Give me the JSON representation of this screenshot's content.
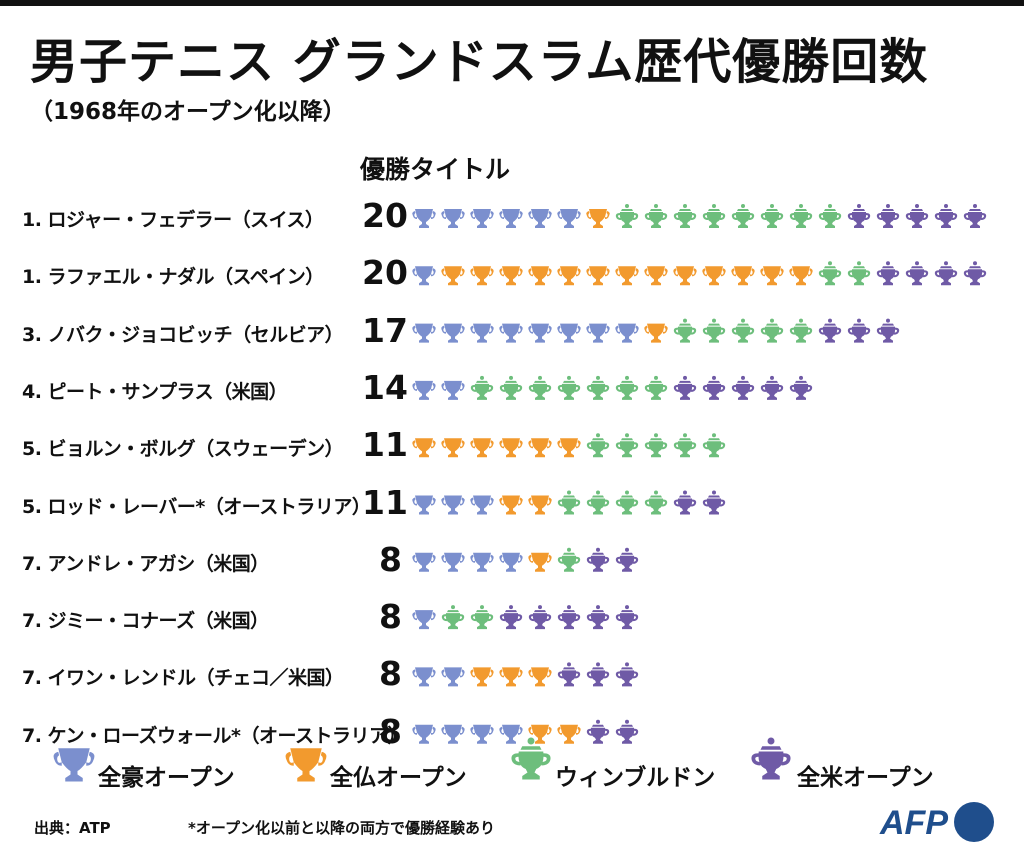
{
  "title": "男子テニス グランドスラム歴代優勝回数",
  "subtitle": "（1968年のオープン化以降）",
  "column_header": "優勝タイトル",
  "footer": {
    "source": "出典：ATP",
    "note": "*オープン化以前と以降の両方で優勝経験あり",
    "logo": "AFP"
  },
  "colors": {
    "australian_open": "#7b8fce",
    "french_open": "#f29a2e",
    "wimbledon": "#6dbe7c",
    "us_open": "#6f5aa6"
  },
  "legend": [
    {
      "key": "australian_open",
      "label": "全豪オープン",
      "icon": "trophy-cup-icon"
    },
    {
      "key": "french_open",
      "label": "全仏オープン",
      "icon": "trophy-cup-icon"
    },
    {
      "key": "wimbledon",
      "label": "ウィンブルドン",
      "icon": "trophy-lidded-icon"
    },
    {
      "key": "us_open",
      "label": "全米オープン",
      "icon": "trophy-lidded-icon"
    }
  ],
  "chart_data": {
    "type": "bar",
    "title": "男子テニス グランドスラム歴代優勝回数",
    "subtitle": "（1968年のオープン化以降）",
    "ylabel": "優勝タイトル",
    "categories": [
      "1. ロジャー・フェデラー（スイス）",
      "1. ラファエル・ナダル（スペイン）",
      "3. ノバク・ジョコビッチ（セルビア）",
      "4. ピート・サンプラス（米国）",
      "5. ビョルン・ボルグ（スウェーデン）",
      "5. ロッド・レーバー*（オーストラリア）",
      "7. アンドレ・アガシ（米国）",
      "7. ジミー・コナーズ（米国）",
      "7. イワン・レンドル（チェコ／米国）",
      "7. ケン・ローズウォール*（オーストラリア）"
    ],
    "totals": [
      "20",
      "20",
      "17",
      "14",
      "11",
      "11",
      "8",
      "8",
      "8",
      "8"
    ],
    "stacked": true,
    "series": [
      {
        "name": "全豪オープン",
        "key": "australian_open",
        "values": [
          6,
          1,
          8,
          2,
          0,
          3,
          4,
          1,
          2,
          4
        ]
      },
      {
        "name": "全仏オープン",
        "key": "french_open",
        "values": [
          1,
          13,
          1,
          0,
          6,
          2,
          1,
          0,
          3,
          2
        ]
      },
      {
        "name": "ウィンブルドン",
        "key": "wimbledon",
        "values": [
          8,
          2,
          5,
          7,
          5,
          4,
          1,
          2,
          0,
          0
        ]
      },
      {
        "name": "全米オープン",
        "key": "us_open",
        "values": [
          5,
          4,
          3,
          5,
          0,
          2,
          2,
          5,
          3,
          2
        ]
      }
    ],
    "legend_position": "bottom"
  }
}
